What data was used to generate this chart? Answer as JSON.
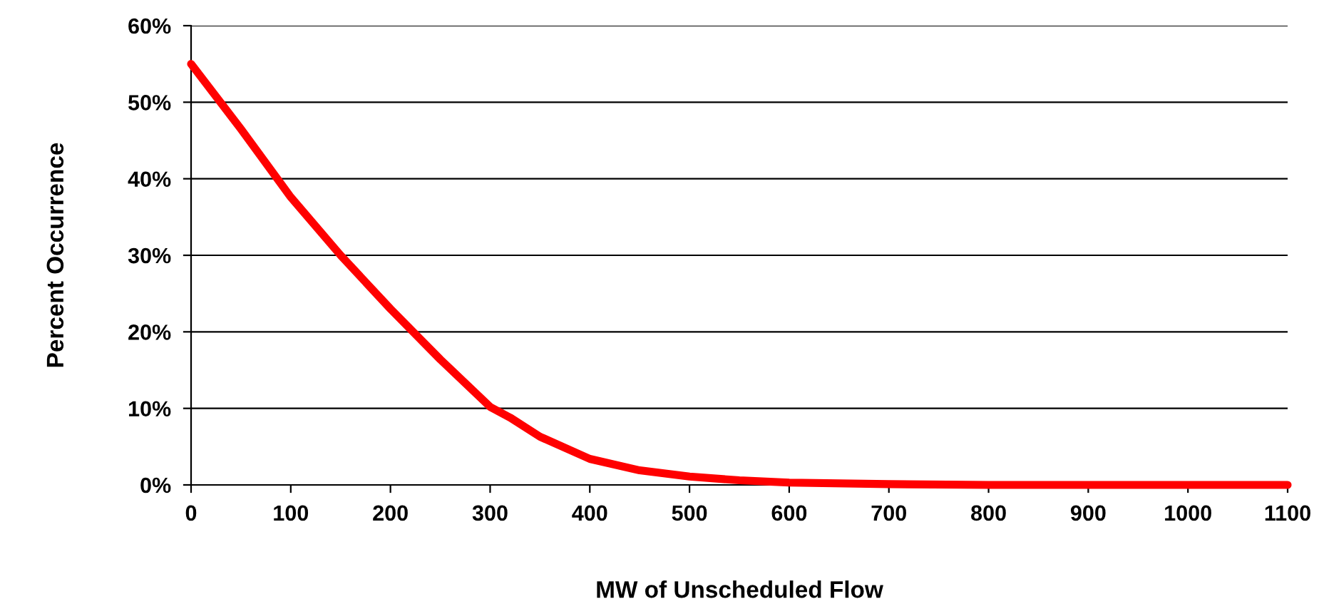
{
  "chart_data": {
    "type": "line",
    "xlabel": "MW of Unscheduled Flow",
    "ylabel": "Percent Occurrence",
    "x": [
      0,
      50,
      100,
      150,
      200,
      250,
      300,
      320,
      350,
      400,
      450,
      500,
      550,
      600,
      700,
      800,
      900,
      1000,
      1100
    ],
    "series": [
      {
        "color": "#ff0000",
        "values": [
          55,
          46.5,
          37.6,
          30,
          23,
          16.4,
          10.2,
          8.8,
          6.3,
          3.4,
          1.9,
          1.1,
          0.6,
          0.3,
          0.1,
          0,
          0,
          0,
          0
        ]
      }
    ],
    "xlim": [
      0,
      1100
    ],
    "xticks": [
      0,
      100,
      200,
      300,
      400,
      500,
      600,
      700,
      800,
      900,
      1000,
      1100
    ],
    "ylim": [
      0,
      60
    ],
    "yticks": [
      {
        "value": 0,
        "label": "0%"
      },
      {
        "value": 10,
        "label": "10%"
      },
      {
        "value": 20,
        "label": "20%"
      },
      {
        "value": 30,
        "label": "30%"
      },
      {
        "value": 40,
        "label": "40%"
      },
      {
        "value": 50,
        "label": "50%"
      },
      {
        "value": 60,
        "label": "60%"
      }
    ],
    "grid": "y",
    "legend": false,
    "marker": "none",
    "line_style": "solid"
  }
}
